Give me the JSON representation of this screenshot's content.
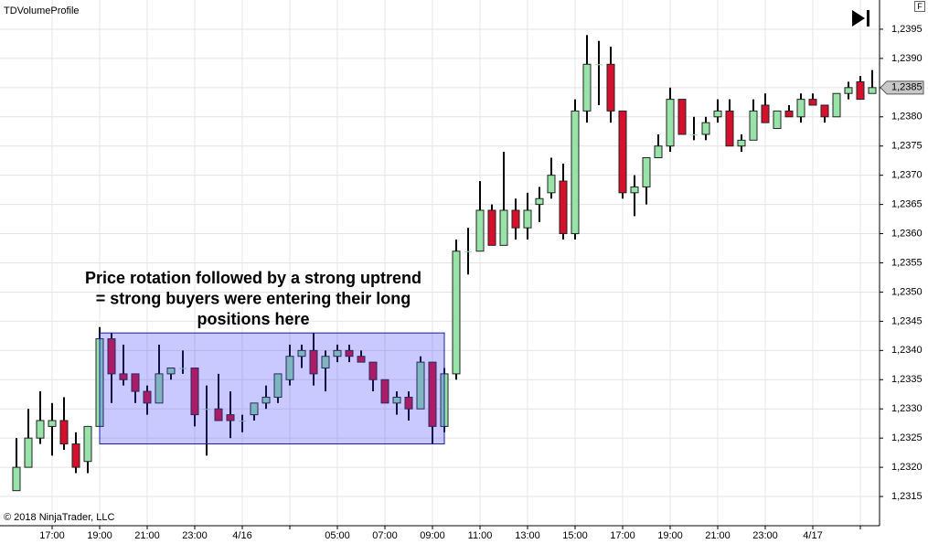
{
  "chart_data": {
    "type": "candlestick",
    "title": "TDVolumeProfile",
    "copyright": "© 2018 NinjaTrader, LLC",
    "annotation": [
      "Price rotation followed by a strong uptrend",
      "= strong buyers were entering their long",
      "positions here"
    ],
    "highlight_range": [
      1.2324,
      1.2343
    ],
    "last_price": {
      "value": 1.2385,
      "label": "1,2385"
    },
    "up_color": "#98e3a8",
    "down_color": "#d4102c",
    "categories": [
      null,
      null,
      null,
      "17:00",
      null,
      null,
      null,
      "19:00",
      null,
      null,
      null,
      "21:00",
      null,
      null,
      null,
      "23:00",
      null,
      null,
      null,
      "4/16",
      null,
      null,
      null,
      null,
      null,
      null,
      null,
      "05:00",
      null,
      null,
      null,
      "07:00",
      null,
      null,
      null,
      "09:00",
      null,
      null,
      null,
      "11:00",
      null,
      null,
      null,
      "13:00",
      null,
      null,
      null,
      "15:00",
      null,
      null,
      null,
      "17:00",
      null,
      null,
      null,
      "19:00",
      null,
      null,
      null,
      "21:00",
      null,
      null,
      null,
      "23:00",
      null,
      null,
      null,
      "4/17",
      null,
      null,
      null,
      null,
      null
    ],
    "open": [
      1.2316,
      1.232,
      1.2325,
      1.2327,
      1.2328,
      1.2324,
      1.2321,
      1.2327,
      1.2342,
      1.2336,
      1.2336,
      1.2333,
      1.2331,
      1.2336,
      1.2337,
      1.2337,
      1.233,
      1.233,
      1.2329,
      1.2328,
      1.2329,
      1.2331,
      1.2332,
      1.2335,
      1.2339,
      1.234,
      1.2337,
      1.2339,
      1.234,
      1.2339,
      1.2338,
      1.2335,
      1.2331,
      1.2332,
      1.233,
      1.2338,
      1.2327,
      1.2336,
      1.2357,
      1.2357,
      1.2364,
      1.2358,
      1.2364,
      1.2361,
      1.2365,
      1.2367,
      1.2369,
      1.236,
      1.2381,
      1.2389,
      1.2389,
      1.2381,
      1.2367,
      1.2368,
      1.2373,
      1.2375,
      1.2383,
      1.2377,
      1.2377,
      1.238,
      1.2381,
      1.2375,
      1.2376,
      1.2382,
      1.2378,
      1.2381,
      1.238,
      1.2383,
      1.2382,
      1.238,
      1.2384,
      1.2386,
      1.2384
    ],
    "high": [
      1.2325,
      1.233,
      1.2333,
      1.2331,
      1.2332,
      1.2326,
      1.2327,
      1.2344,
      1.2343,
      1.2341,
      1.2336,
      1.2334,
      1.2341,
      1.2337,
      1.234,
      1.2337,
      1.2334,
      1.2336,
      1.2333,
      1.2329,
      1.2331,
      1.2334,
      1.2336,
      1.2341,
      1.2341,
      1.2343,
      1.234,
      1.2341,
      1.2341,
      1.234,
      1.2338,
      1.2335,
      1.2333,
      1.2333,
      1.2339,
      1.2338,
      1.2337,
      1.2359,
      1.2361,
      1.2369,
      1.2365,
      1.2374,
      1.2366,
      1.2367,
      1.2368,
      1.2373,
      1.2372,
      1.2383,
      1.2394,
      1.2393,
      1.2392,
      1.2381,
      1.237,
      1.2373,
      1.2377,
      1.2385,
      1.2383,
      1.238,
      1.238,
      1.2383,
      1.2383,
      1.2377,
      1.2383,
      1.2384,
      1.2381,
      1.2382,
      1.2384,
      1.2384,
      1.2382,
      1.2384,
      1.2386,
      1.2387,
      1.2388
    ],
    "low": [
      1.2316,
      1.232,
      1.2324,
      1.2322,
      1.2323,
      1.2319,
      1.2319,
      1.2327,
      1.2331,
      1.2334,
      1.2331,
      1.2329,
      1.2331,
      1.2335,
      1.2336,
      1.2327,
      1.2322,
      1.2328,
      1.2325,
      1.2326,
      1.2328,
      1.233,
      1.2331,
      1.2334,
      1.2337,
      1.2334,
      1.2333,
      1.2338,
      1.2338,
      1.2338,
      1.2333,
      1.2331,
      1.2329,
      1.2328,
      1.233,
      1.2324,
      1.2326,
      1.2335,
      1.2353,
      1.2357,
      1.2358,
      1.2358,
      1.2359,
      1.2359,
      1.2362,
      1.2366,
      1.2359,
      1.2359,
      1.2379,
      1.2382,
      1.2379,
      1.2366,
      1.2363,
      1.2365,
      1.2373,
      1.2374,
      1.2377,
      1.2376,
      1.2376,
      1.2379,
      1.2375,
      1.2374,
      1.2376,
      1.2379,
      1.2378,
      1.238,
      1.2379,
      1.2382,
      1.2379,
      1.238,
      1.2383,
      1.2383,
      1.2384
    ],
    "close": [
      1.232,
      1.2325,
      1.2328,
      1.2328,
      1.2324,
      1.232,
      1.2327,
      1.2342,
      1.2336,
      1.2335,
      1.2333,
      1.2331,
      1.2336,
      1.2337,
      1.2337,
      1.2329,
      1.233,
      1.2328,
      1.2328,
      1.2328,
      1.2331,
      1.2332,
      1.2336,
      1.2339,
      1.234,
      1.2336,
      1.2339,
      1.234,
      1.2339,
      1.2338,
      1.2335,
      1.2331,
      1.2332,
      1.233,
      1.2338,
      1.2327,
      1.2336,
      1.2357,
      1.2357,
      1.2364,
      1.2358,
      1.2364,
      1.2361,
      1.2364,
      1.2366,
      1.237,
      1.236,
      1.2381,
      1.2389,
      1.2389,
      1.2381,
      1.2367,
      1.2368,
      1.2373,
      1.2375,
      1.2383,
      1.2377,
      1.2377,
      1.2379,
      1.2381,
      1.2375,
      1.2376,
      1.2381,
      1.2379,
      1.2381,
      1.238,
      1.2383,
      1.2382,
      1.238,
      1.2384,
      1.2385,
      1.2383,
      1.2385
    ],
    "ylim": [
      1.231,
      1.24
    ],
    "yticks": [
      {
        "value": 1.2315,
        "label": "1,2315"
      },
      {
        "value": 1.232,
        "label": "1,2320"
      },
      {
        "value": 1.2325,
        "label": "1,2325"
      },
      {
        "value": 1.233,
        "label": "1,2330"
      },
      {
        "value": 1.2335,
        "label": "1,2335"
      },
      {
        "value": 1.234,
        "label": "1,2340"
      },
      {
        "value": 1.2345,
        "label": "1,2345"
      },
      {
        "value": 1.235,
        "label": "1,2350"
      },
      {
        "value": 1.2355,
        "label": "1,2355"
      },
      {
        "value": 1.236,
        "label": "1,2360"
      },
      {
        "value": 1.2365,
        "label": "1,2365"
      },
      {
        "value": 1.237,
        "label": "1,2370"
      },
      {
        "value": 1.2375,
        "label": "1,2375"
      },
      {
        "value": 1.238,
        "label": "1,2380"
      },
      {
        "value": 1.2385,
        "label": "1,2385"
      },
      {
        "value": 1.239,
        "label": "1,2390"
      },
      {
        "value": 1.2395,
        "label": "1,2395"
      }
    ],
    "grid": true
  }
}
